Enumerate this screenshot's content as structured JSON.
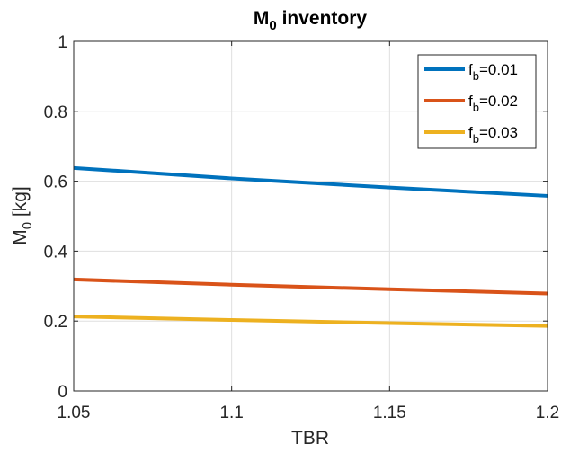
{
  "chart_data": {
    "type": "line",
    "title": {
      "main": "M",
      "sub": "0",
      "rest": " inventory"
    },
    "xlabel": "TBR",
    "ylabel": {
      "main": "M",
      "sub": "0",
      "rest": " [kg]"
    },
    "xlim": [
      1.05,
      1.2
    ],
    "ylim": [
      0,
      1
    ],
    "xticks": [
      1.05,
      1.1,
      1.15,
      1.2
    ],
    "xtick_labels": [
      "1.05",
      "1.1",
      "1.15",
      "1.2"
    ],
    "yticks": [
      0,
      0.2,
      0.4,
      0.6,
      0.8,
      1
    ],
    "ytick_labels": [
      "0",
      "0.2",
      "0.4",
      "0.6",
      "0.8",
      "1"
    ],
    "grid": true,
    "legend_position": "top-right",
    "x": [
      1.05,
      1.1,
      1.15,
      1.2
    ],
    "series": [
      {
        "name": "f_b=0.01",
        "label": {
          "main": "f",
          "sub": "b",
          "rest": "=0.01"
        },
        "color": "#0072BD",
        "values": [
          0.638,
          0.608,
          0.582,
          0.558
        ]
      },
      {
        "name": "f_b=0.02",
        "label": {
          "main": "f",
          "sub": "b",
          "rest": "=0.02"
        },
        "color": "#D95319",
        "values": [
          0.319,
          0.304,
          0.291,
          0.279
        ]
      },
      {
        "name": "f_b=0.03",
        "label": {
          "main": "f",
          "sub": "b",
          "rest": "=0.03"
        },
        "color": "#EDB120",
        "values": [
          0.213,
          0.203,
          0.194,
          0.186
        ]
      }
    ]
  }
}
